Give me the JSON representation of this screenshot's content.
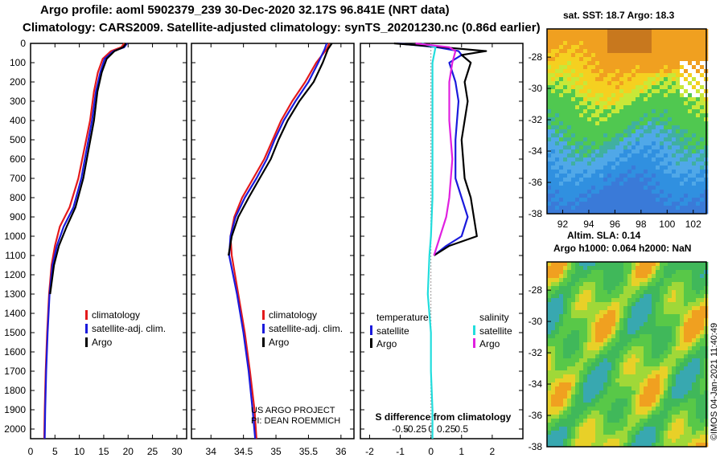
{
  "header": {
    "line1": "Argo profile: aoml 5902379_239 30-Dec-2020 32.17S 96.841E (NRT data)",
    "line2": "Climatology: CARS2009. Satellite-adjusted climatology: synTS_20201230.nc (0.86d earlier)"
  },
  "colors": {
    "climatology": "#e31a1c",
    "satellite": "#1a1adc",
    "argo": "#000000",
    "satellite_s": "#22dddd",
    "argo_s": "#e020e0"
  },
  "credits": {
    "line1": "US ARGO PROJECT",
    "line2": "PI: DEAN ROEMMICH",
    "side": "©IMOS 04-Jan-2021 11:40:49"
  },
  "right_panels": {
    "sst_title": "sat. SST: 18.7 Argo: 18.3",
    "sla_title1": "Altim. SLA: 0.14",
    "sla_title2": "Argo h1000: 0.064 h2000: NaN"
  },
  "chart_data": [
    {
      "type": "line",
      "name": "temperature",
      "xlim": [
        0,
        32
      ],
      "ylim": [
        2050,
        0
      ],
      "xticks": [
        "0",
        "5",
        "10",
        "15",
        "20",
        "25",
        "30"
      ],
      "xtick_values": [
        0,
        5,
        10,
        15,
        20,
        25,
        30
      ],
      "yticks": [
        "0",
        "100",
        "200",
        "300",
        "400",
        "500",
        "600",
        "700",
        "800",
        "900",
        "1000",
        "1100",
        "1200",
        "1300",
        "1400",
        "1500",
        "1600",
        "1700",
        "1800",
        "1900",
        "2000"
      ],
      "ytick_values": [
        0,
        100,
        200,
        300,
        400,
        500,
        600,
        700,
        800,
        900,
        1000,
        1100,
        1200,
        1300,
        1400,
        1500,
        1600,
        1700,
        1800,
        1900,
        2000
      ],
      "legend": [
        "climatology",
        "satellite-adj. clim.",
        "Argo"
      ],
      "series": [
        {
          "name": "climatology",
          "color": "#e31a1c",
          "points": [
            [
              19.2,
              0
            ],
            [
              18.6,
              20
            ],
            [
              16.5,
              40
            ],
            [
              14.8,
              80
            ],
            [
              13.8,
              150
            ],
            [
              13.0,
              250
            ],
            [
              12.2,
              400
            ],
            [
              11.0,
              550
            ],
            [
              9.8,
              700
            ],
            [
              8.0,
              850
            ],
            [
              6.0,
              950
            ],
            [
              5.0,
              1050
            ],
            [
              4.3,
              1150
            ],
            [
              3.8,
              1300
            ],
            [
              3.4,
              1500
            ],
            [
              3.1,
              1700
            ],
            [
              2.9,
              1900
            ],
            [
              2.8,
              2050
            ]
          ]
        },
        {
          "name": "satellite",
          "color": "#1a1adc",
          "points": [
            [
              19.8,
              0
            ],
            [
              19.2,
              20
            ],
            [
              17.0,
              40
            ],
            [
              15.2,
              80
            ],
            [
              14.3,
              150
            ],
            [
              13.4,
              250
            ],
            [
              12.6,
              400
            ],
            [
              11.5,
              550
            ],
            [
              10.4,
              700
            ],
            [
              8.8,
              850
            ],
            [
              6.8,
              950
            ],
            [
              5.4,
              1050
            ],
            [
              4.5,
              1150
            ],
            [
              3.9,
              1300
            ],
            [
              3.5,
              1500
            ],
            [
              3.2,
              1700
            ],
            [
              3.0,
              1900
            ],
            [
              2.9,
              2050
            ]
          ]
        },
        {
          "name": "Argo",
          "color": "#000000",
          "points": [
            [
              19.6,
              0
            ],
            [
              19.0,
              20
            ],
            [
              17.2,
              40
            ],
            [
              15.6,
              80
            ],
            [
              14.6,
              150
            ],
            [
              13.7,
              250
            ],
            [
              13.0,
              400
            ],
            [
              11.9,
              550
            ],
            [
              10.8,
              700
            ],
            [
              9.2,
              850
            ],
            [
              7.4,
              950
            ],
            [
              5.8,
              1050
            ],
            [
              4.8,
              1150
            ],
            [
              4.0,
              1300
            ]
          ]
        }
      ]
    },
    {
      "type": "line",
      "name": "salinity",
      "xlim": [
        33.7,
        36.2
      ],
      "ylim": [
        2050,
        0
      ],
      "xticks": [
        "34",
        "34.5",
        "35",
        "35.5",
        "36"
      ],
      "xtick_values": [
        34,
        34.5,
        35,
        35.5,
        36
      ],
      "legend": [
        "climatology",
        "satellite-adj. clim.",
        "Argo"
      ],
      "series": [
        {
          "name": "climatology",
          "color": "#e31a1c",
          "points": [
            [
              35.82,
              0
            ],
            [
              35.78,
              30
            ],
            [
              35.62,
              100
            ],
            [
              35.45,
              200
            ],
            [
              35.25,
              300
            ],
            [
              35.08,
              400
            ],
            [
              34.95,
              500
            ],
            [
              34.82,
              600
            ],
            [
              34.65,
              700
            ],
            [
              34.48,
              800
            ],
            [
              34.36,
              900
            ],
            [
              34.3,
              1000
            ],
            [
              34.32,
              1100
            ],
            [
              34.42,
              1300
            ],
            [
              34.52,
              1500
            ],
            [
              34.6,
              1700
            ],
            [
              34.67,
              1900
            ],
            [
              34.7,
              2050
            ]
          ]
        },
        {
          "name": "satellite",
          "color": "#1a1adc",
          "points": [
            [
              35.78,
              0
            ],
            [
              35.75,
              30
            ],
            [
              35.65,
              100
            ],
            [
              35.5,
              200
            ],
            [
              35.3,
              300
            ],
            [
              35.12,
              400
            ],
            [
              34.98,
              500
            ],
            [
              34.86,
              600
            ],
            [
              34.7,
              700
            ],
            [
              34.52,
              800
            ],
            [
              34.38,
              900
            ],
            [
              34.3,
              1000
            ],
            [
              34.28,
              1100
            ],
            [
              34.4,
              1300
            ],
            [
              34.5,
              1500
            ],
            [
              34.58,
              1700
            ],
            [
              34.64,
              1900
            ],
            [
              34.68,
              2050
            ]
          ]
        },
        {
          "name": "Argo",
          "color": "#000000",
          "points": [
            [
              35.86,
              0
            ],
            [
              35.8,
              30
            ],
            [
              35.72,
              100
            ],
            [
              35.58,
              200
            ],
            [
              35.36,
              300
            ],
            [
              35.18,
              400
            ],
            [
              35.04,
              500
            ],
            [
              34.92,
              600
            ],
            [
              34.75,
              700
            ],
            [
              34.58,
              800
            ],
            [
              34.42,
              900
            ],
            [
              34.32,
              1000
            ],
            [
              34.27,
              1100
            ]
          ]
        }
      ]
    },
    {
      "type": "line",
      "name": "difference",
      "xlim": [
        -2.3,
        3.0
      ],
      "ylim": [
        2050,
        0
      ],
      "xticks": [
        "-2",
        "-1",
        "0",
        "1",
        "2"
      ],
      "xtick_values": [
        -2,
        -1,
        0,
        1,
        2
      ],
      "top_xticks": [
        "-0.5",
        "-0.25",
        "0",
        "0.25",
        "0.5"
      ],
      "top_xtick_values": [
        -0.5,
        -0.25,
        0,
        0.25,
        0.5
      ],
      "xlabel": "S difference from climatology",
      "legend": {
        "temperature": [
          "satellite",
          "Argo"
        ],
        "salinity": [
          "satellite",
          "Argo"
        ],
        "temperature_label": "temperature",
        "salinity_label": "salinity"
      },
      "series": [
        {
          "name": "temperature-satellite",
          "color": "#1a1adc",
          "points": [
            [
              -1.1,
              0
            ],
            [
              0.2,
              20
            ],
            [
              0.9,
              40
            ],
            [
              1.0,
              60
            ],
            [
              0.6,
              100
            ],
            [
              0.8,
              200
            ],
            [
              0.9,
              300
            ],
            [
              0.8,
              500
            ],
            [
              0.8,
              700
            ],
            [
              1.0,
              800
            ],
            [
              1.2,
              900
            ],
            [
              1.0,
              1000
            ],
            [
              0.5,
              1050
            ],
            [
              0.1,
              1100
            ]
          ]
        },
        {
          "name": "temperature-Argo",
          "color": "#000000",
          "points": [
            [
              -1.2,
              0
            ],
            [
              0.4,
              20
            ],
            [
              1.8,
              40
            ],
            [
              1.0,
              60
            ],
            [
              1.3,
              100
            ],
            [
              1.1,
              200
            ],
            [
              1.2,
              300
            ],
            [
              1.0,
              500
            ],
            [
              1.1,
              700
            ],
            [
              1.3,
              800
            ],
            [
              1.4,
              900
            ],
            [
              1.5,
              1000
            ],
            [
              0.6,
              1050
            ],
            [
              0.1,
              1100
            ]
          ]
        },
        {
          "name": "salinity-satellite",
          "color": "#22dddd",
          "points": [
            [
              -0.3,
              0
            ],
            [
              0.15,
              20
            ],
            [
              0.05,
              100
            ],
            [
              0.05,
              500
            ],
            [
              0.05,
              800
            ],
            [
              0.0,
              1000
            ],
            [
              -0.05,
              1100
            ],
            [
              -0.1,
              1300
            ],
            [
              0.0,
              1500
            ],
            [
              0.0,
              1700
            ],
            [
              0.05,
              1900
            ],
            [
              0.05,
              2050
            ]
          ]
        },
        {
          "name": "salinity-Argo",
          "color": "#e020e0",
          "points": [
            [
              -0.5,
              0
            ],
            [
              0.6,
              20
            ],
            [
              0.8,
              40
            ],
            [
              0.7,
              100
            ],
            [
              0.6,
              200
            ],
            [
              0.6,
              400
            ],
            [
              0.7,
              600
            ],
            [
              0.6,
              800
            ],
            [
              0.5,
              900
            ],
            [
              0.3,
              1000
            ],
            [
              0.1,
              1100
            ]
          ]
        }
      ]
    },
    {
      "type": "heatmap",
      "name": "sst-map",
      "title": "sat. SST: 18.7 Argo: 18.3",
      "xlim": [
        90.8,
        103.0
      ],
      "ylim": [
        -38,
        -26.2
      ],
      "xticks": [
        "92",
        "94",
        "96",
        "98",
        "100",
        "102"
      ],
      "xtick_values": [
        92,
        94,
        96,
        98,
        100,
        102
      ],
      "yticks": [
        "-28",
        "-30",
        "-32",
        "-34",
        "-36",
        "-38"
      ],
      "ytick_values": [
        -28,
        -30,
        -32,
        -34,
        -36,
        -38
      ]
    },
    {
      "type": "heatmap",
      "name": "sla-map",
      "title": "Altim. SLA: 0.14",
      "xlim": [
        90.8,
        103.0
      ],
      "ylim": [
        -38,
        -26.2
      ],
      "yticks": [
        "-28",
        "-30",
        "-32",
        "-34",
        "-36",
        "-38"
      ],
      "ytick_values": [
        -28,
        -30,
        -32,
        -34,
        -36,
        -38
      ]
    }
  ]
}
